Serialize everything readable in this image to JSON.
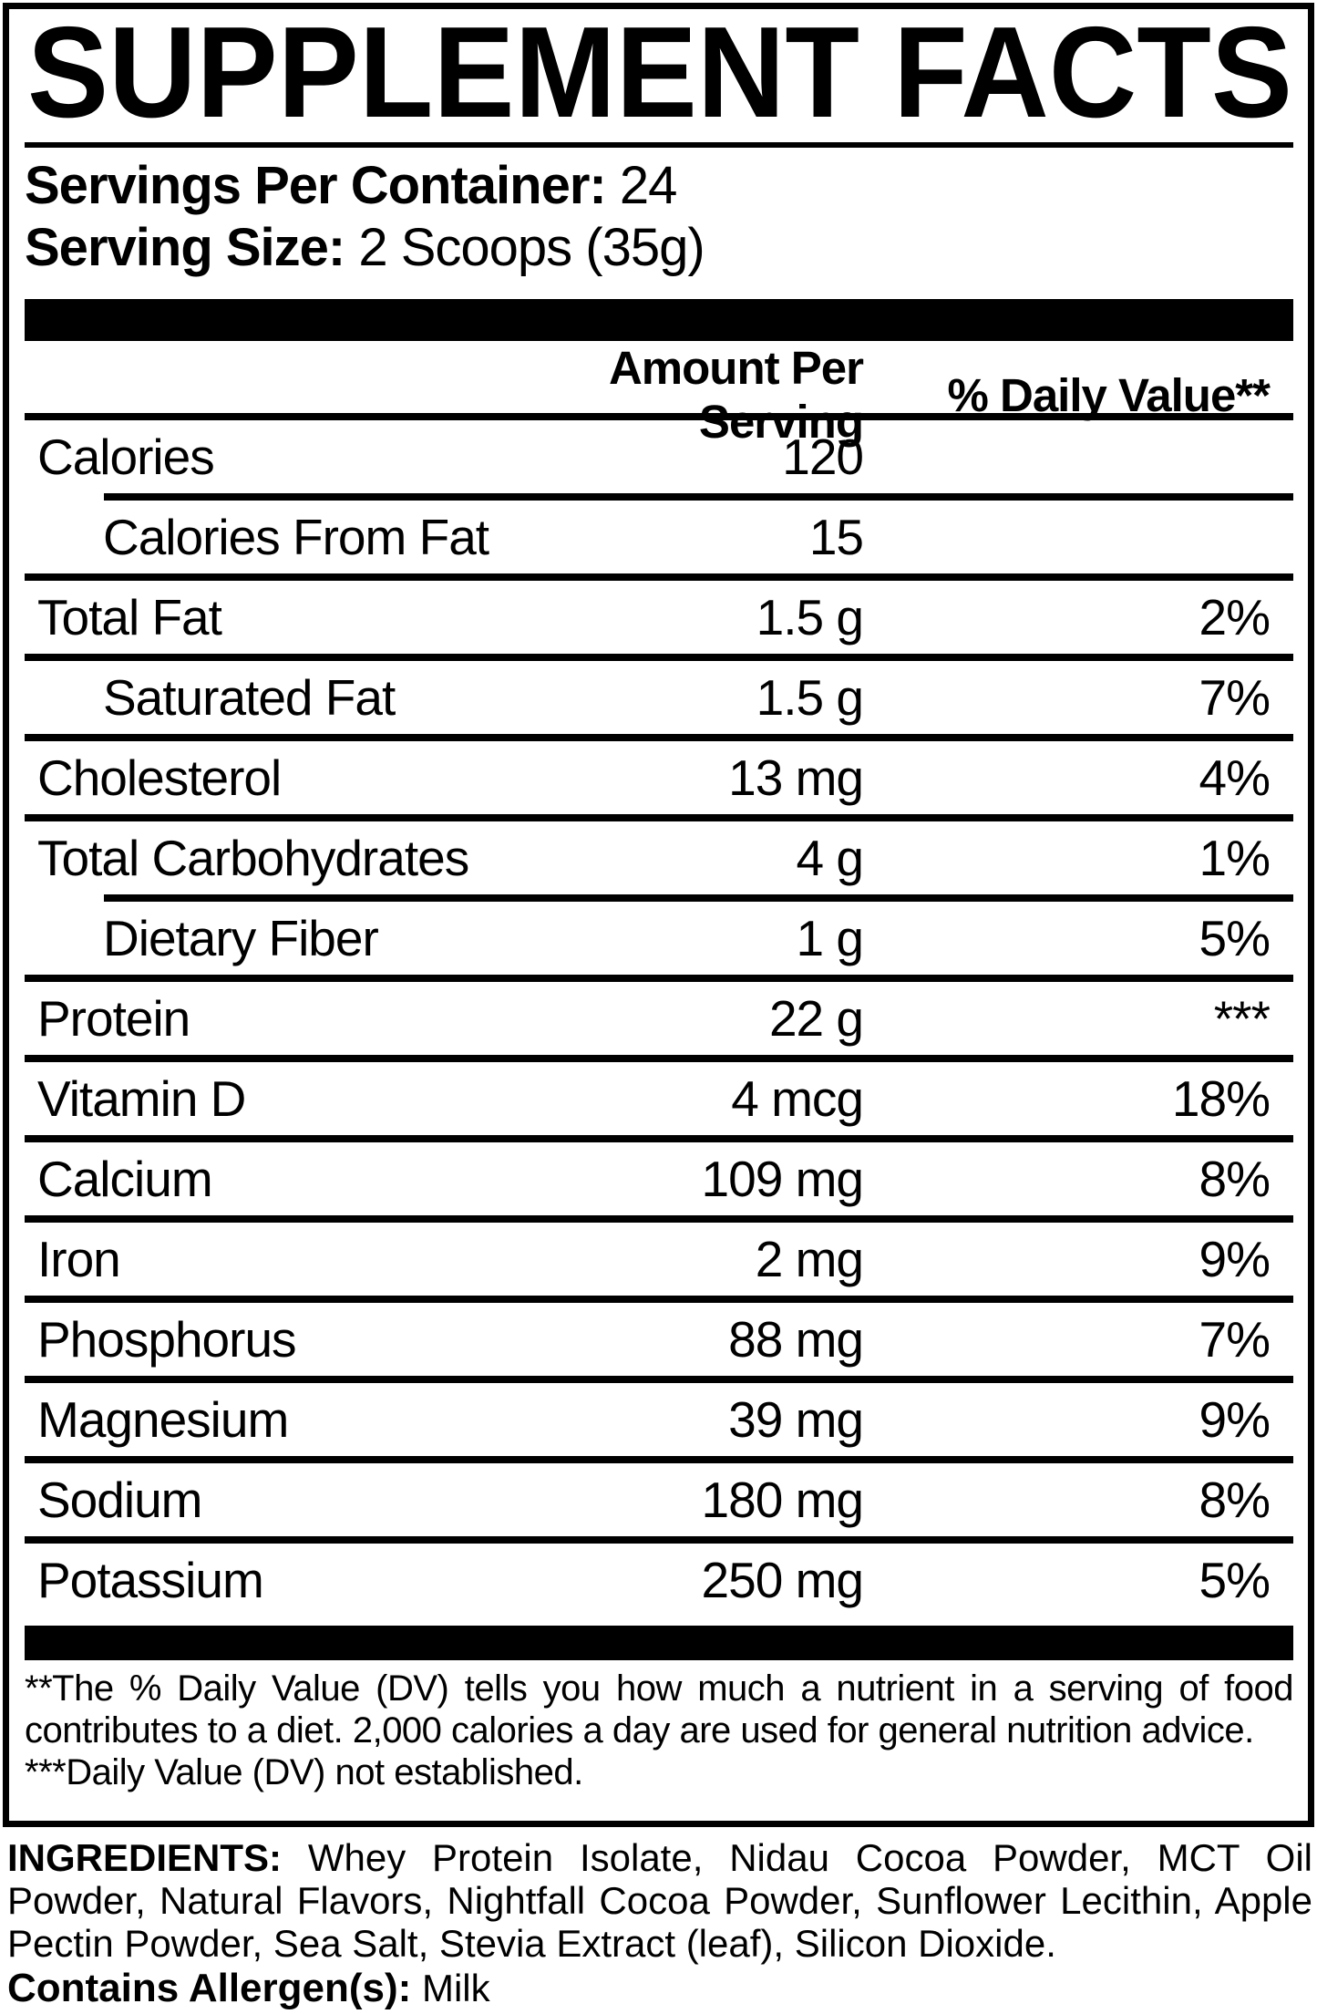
{
  "panel": {
    "title": "SUPPLEMENT FACTS",
    "servings_per_container_label": "Servings Per Container:",
    "servings_per_container_value": "24",
    "serving_size_label": "Serving Size:",
    "serving_size_value": "2 Scoops (35g)",
    "columns": {
      "amount": "Amount Per Serving",
      "daily_value": "% Daily Value**"
    },
    "rows": [
      {
        "label": "Calories",
        "amount": "120",
        "dv": "",
        "indent": false,
        "sep": "indent"
      },
      {
        "label": "Calories From Fat",
        "amount": "15",
        "dv": "",
        "indent": true,
        "sep": "full"
      },
      {
        "label": "Total Fat",
        "amount": "1.5 g",
        "dv": "2%",
        "indent": false,
        "sep": "full"
      },
      {
        "label": "Saturated Fat",
        "amount": "1.5 g",
        "dv": "7%",
        "indent": true,
        "sep": "full"
      },
      {
        "label": "Cholesterol",
        "amount": "13 mg",
        "dv": "4%",
        "indent": false,
        "sep": "full"
      },
      {
        "label": "Total Carbohydrates",
        "amount": "4 g",
        "dv": "1%",
        "indent": false,
        "sep": "indent"
      },
      {
        "label": "Dietary Fiber",
        "amount": "1 g",
        "dv": "5%",
        "indent": true,
        "sep": "full"
      },
      {
        "label": "Protein",
        "amount": "22 g",
        "dv": "***",
        "indent": false,
        "sep": "full"
      },
      {
        "label": "Vitamin D",
        "amount": "4 mcg",
        "dv": "18%",
        "indent": false,
        "sep": "full"
      },
      {
        "label": "Calcium",
        "amount": "109 mg",
        "dv": "8%",
        "indent": false,
        "sep": "full"
      },
      {
        "label": "Iron",
        "amount": "2 mg",
        "dv": "9%",
        "indent": false,
        "sep": "full"
      },
      {
        "label": "Phosphorus",
        "amount": "88 mg",
        "dv": "7%",
        "indent": false,
        "sep": "full"
      },
      {
        "label": "Magnesium",
        "amount": "39 mg",
        "dv": "9%",
        "indent": false,
        "sep": "full"
      },
      {
        "label": "Sodium",
        "amount": "180 mg",
        "dv": "8%",
        "indent": false,
        "sep": "full"
      },
      {
        "label": "Potassium",
        "amount": "250 mg",
        "dv": "5%",
        "indent": false,
        "sep": "none"
      }
    ],
    "footnote_dv": "**The % Daily Value (DV) tells you how much a nutrient in a serving of food contributes to a diet. 2,000 calories a day are used for general nutrition advice.",
    "footnote_not_established": "***Daily Value (DV) not established."
  },
  "ingredients": {
    "label": "INGREDIENTS:",
    "text": " Whey Protein Isolate, Nidau Cocoa Powder, MCT Oil Powder, Natural Flavors, Nightfall Cocoa Powder, Sunflower Lecithin, Apple Pectin Powder, Sea Salt, Stevia Extract (leaf), Silicon Dioxide.",
    "allergen_label": "Contains Allergen(s):",
    "allergen_value": " Milk"
  },
  "colors": {
    "ink": "#000000",
    "paper": "#ffffff"
  }
}
